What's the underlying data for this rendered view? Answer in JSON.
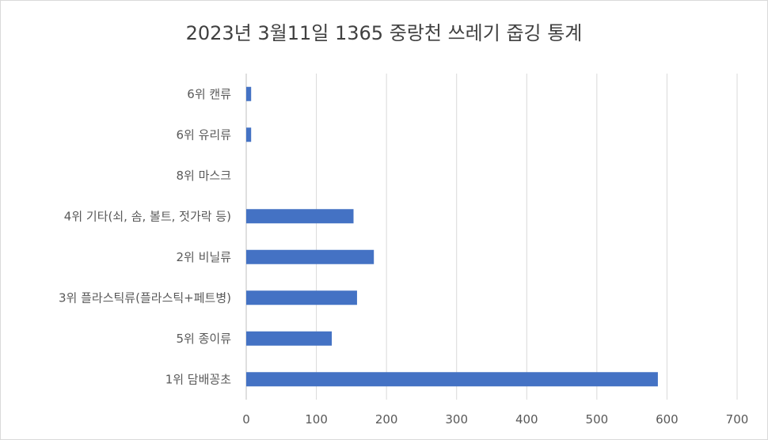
{
  "chart_data": {
    "type": "bar",
    "orientation": "horizontal",
    "title": "2023년 3월11일 1365 중랑천 쓰레기 줍깅 통계",
    "categories": [
      "6위 캔류",
      "6위 유리류",
      "8위 마스크",
      "4위 기타(쇠, 솜, 볼트, 젓가락 등)",
      "2위 비닐류",
      "3위 플라스틱류(플라스틱+페트병)",
      "5위 종이류",
      "1위 담배꽁초"
    ],
    "values": [
      7,
      7,
      0,
      153,
      182,
      158,
      122,
      587
    ],
    "xlim": [
      0,
      700
    ],
    "xticks": [
      "0",
      "100",
      "200",
      "300",
      "400",
      "500",
      "600",
      "700"
    ],
    "grid": true,
    "legend": "none",
    "bar_color": "#4472c4",
    "grid_color": "#d9d9d9"
  }
}
